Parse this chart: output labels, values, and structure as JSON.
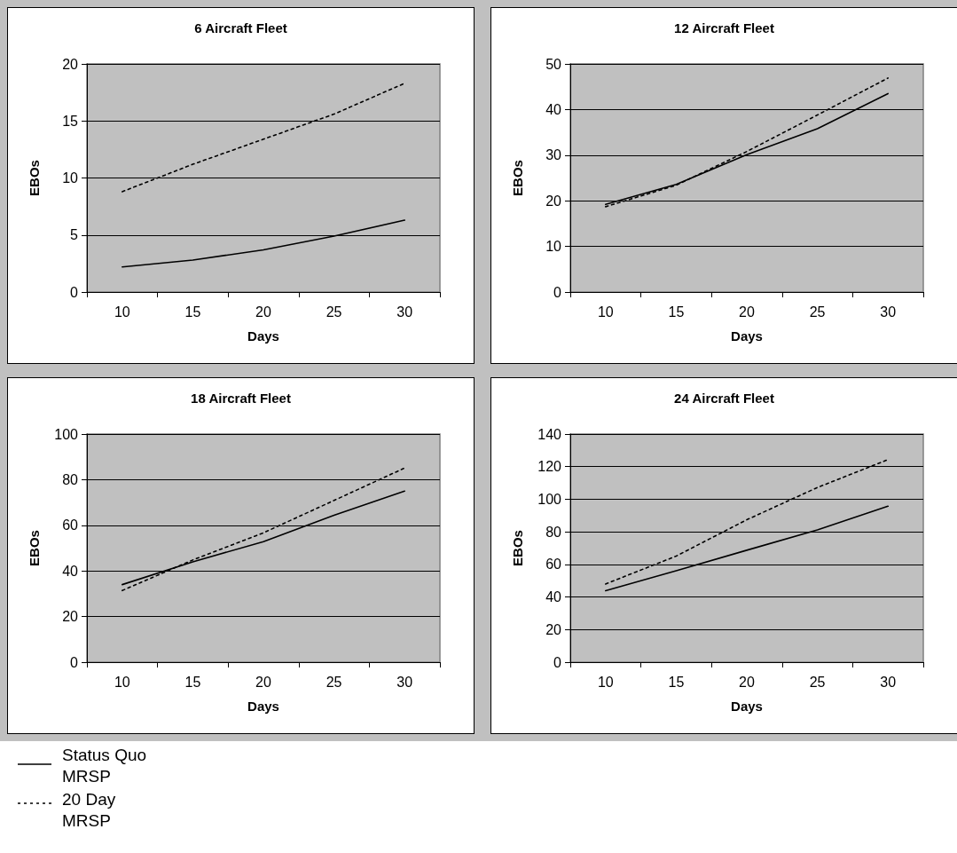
{
  "chart_data": [
    {
      "type": "line",
      "title": "6 Aircraft Fleet",
      "xlabel": "Days",
      "ylabel": "EBOs",
      "categories": [
        "10",
        "15",
        "20",
        "25",
        "30"
      ],
      "ylim": [
        0,
        20
      ],
      "yticks": [
        0,
        5,
        10,
        15,
        20
      ],
      "grid": "y",
      "legend": "bottom left",
      "marker": "none",
      "series": [
        {
          "name": "Status Quo MRSP",
          "color": "#000000",
          "line_style": "solid",
          "values": [
            2.2,
            2.8,
            3.7,
            4.9,
            6.3
          ]
        },
        {
          "name": "20 Day MRSP",
          "color": "#000000",
          "line_style": "dashed",
          "values": [
            8.8,
            11.2,
            13.4,
            15.6,
            18.3
          ]
        }
      ]
    },
    {
      "type": "line",
      "title": "12 Aircraft Fleet",
      "xlabel": "Days",
      "ylabel": "EBOs",
      "categories": [
        "10",
        "15",
        "20",
        "25",
        "30"
      ],
      "ylim": [
        0,
        50
      ],
      "yticks": [
        0,
        10,
        20,
        30,
        40,
        50
      ],
      "grid": "y",
      "marker": "none",
      "series": [
        {
          "color": "#000000",
          "line_style": "solid",
          "values": [
            19.2,
            23.6,
            30.1,
            35.8,
            43.5
          ]
        },
        {
          "color": "#000000",
          "line_style": "dashed",
          "values": [
            18.7,
            23.4,
            30.8,
            38.8,
            46.9
          ]
        }
      ]
    },
    {
      "type": "line",
      "title": "18 Aircraft Fleet",
      "xlabel": "Days",
      "ylabel": "EBOs",
      "categories": [
        "10",
        "15",
        "20",
        "25",
        "30"
      ],
      "ylim": [
        0,
        100
      ],
      "yticks": [
        0,
        20,
        40,
        60,
        80,
        100
      ],
      "grid": "y",
      "marker": "none",
      "series": [
        {
          "color": "#000000",
          "line_style": "solid",
          "values": [
            34,
            44,
            52.8,
            64.4,
            75
          ]
        },
        {
          "color": "#000000",
          "line_style": "dashed",
          "values": [
            31.4,
            44.8,
            56.7,
            70.9,
            85.1
          ]
        }
      ]
    },
    {
      "type": "line",
      "title": "24 Aircraft Fleet",
      "xlabel": "Days",
      "ylabel": "EBOs",
      "categories": [
        "10",
        "15",
        "20",
        "25",
        "30"
      ],
      "ylim": [
        0,
        140
      ],
      "yticks": [
        0,
        20,
        40,
        60,
        80,
        100,
        120,
        140
      ],
      "grid": "y",
      "marker": "none",
      "series": [
        {
          "color": "#000000",
          "line_style": "solid",
          "values": [
            43.9,
            56.1,
            68.7,
            81.2,
            95.7
          ]
        },
        {
          "color": "#000000",
          "line_style": "dashed",
          "values": [
            48,
            65.1,
            87.4,
            107.2,
            124.3
          ]
        }
      ]
    }
  ]
}
